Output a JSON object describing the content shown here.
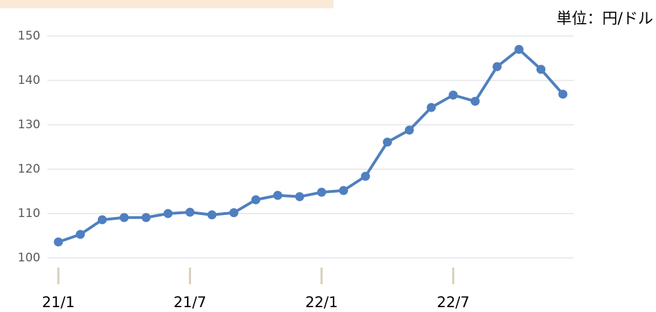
{
  "chart_data": {
    "type": "line",
    "unit_label": "単位：円/ドル",
    "categories": [
      "21/1",
      null,
      null,
      null,
      null,
      null,
      "21/7",
      null,
      null,
      null,
      null,
      null,
      "22/1",
      null,
      null,
      null,
      null,
      null,
      "22/7",
      null,
      null,
      null,
      null,
      null
    ],
    "series": [
      {
        "name": null,
        "color": "#4f7fbf",
        "values": [
          103.6,
          105.3,
          108.6,
          109.1,
          109.1,
          110.0,
          110.3,
          109.7,
          110.2,
          113.1,
          114.1,
          113.8,
          114.8,
          115.2,
          118.4,
          126.1,
          128.8,
          133.9,
          136.7,
          135.3,
          143.1,
          147.0,
          142.5,
          136.9
        ]
      }
    ],
    "ylim": [
      100,
      150
    ],
    "yticks": [
      100,
      110,
      120,
      130,
      140,
      150
    ],
    "grid": true
  }
}
